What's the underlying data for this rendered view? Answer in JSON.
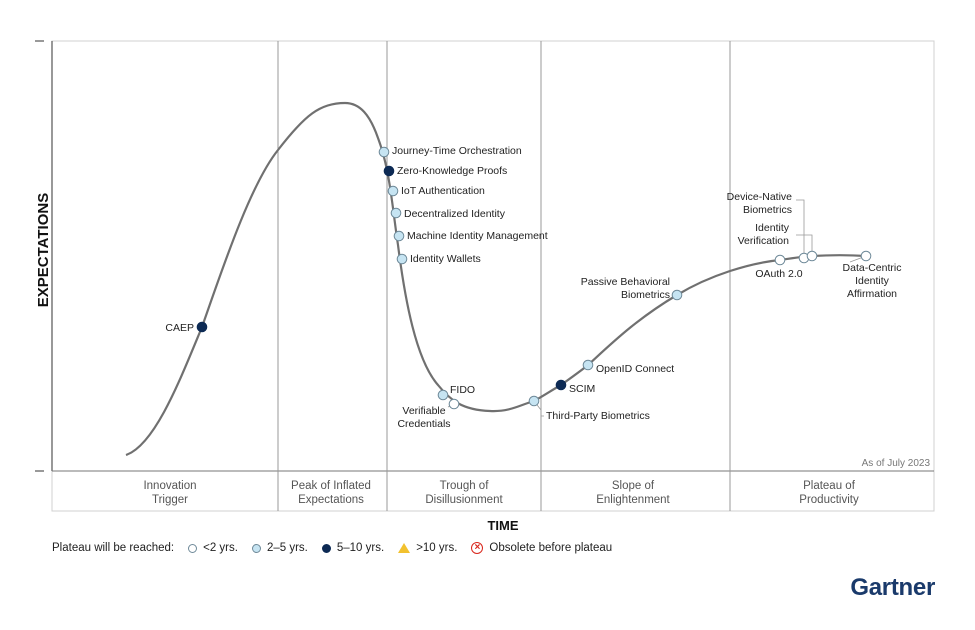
{
  "chart_data": {
    "type": "hype-cycle",
    "ylabel": "EXPECTATIONS",
    "xlabel": "TIME",
    "as_of": "As of July 2023",
    "phases": [
      {
        "label": [
          "Innovation",
          "Trigger"
        ]
      },
      {
        "label": [
          "Peak of Inflated",
          "Expectations"
        ]
      },
      {
        "label": [
          "Trough of",
          "Disillusionment"
        ]
      },
      {
        "label": [
          "Slope of",
          "Enlightenment"
        ]
      },
      {
        "label": [
          "Plateau of",
          "Productivity"
        ]
      }
    ],
    "legend": {
      "title": "Plateau will be reached:",
      "items": [
        {
          "key": "lt2",
          "label": "<2 yrs.",
          "color": "#ffffff"
        },
        {
          "key": "2to5",
          "label": "2–5 yrs.",
          "color": "#c6e4f2"
        },
        {
          "key": "5to10",
          "label": "5–10 yrs.",
          "color": "#0d2a54"
        },
        {
          "key": "gt10",
          "label": ">10 yrs.",
          "color": "#f2c12e"
        },
        {
          "key": "obsolete",
          "label": "Obsolete before plateau",
          "color": "#d9261c"
        }
      ]
    },
    "technologies": [
      {
        "name": [
          "CAEP"
        ],
        "plateau": "5to10"
      },
      {
        "name": [
          "Journey-Time Orchestration"
        ],
        "plateau": "2to5"
      },
      {
        "name": [
          "Zero-Knowledge Proofs"
        ],
        "plateau": "5to10"
      },
      {
        "name": [
          "IoT Authentication"
        ],
        "plateau": "2to5"
      },
      {
        "name": [
          "Decentralized Identity"
        ],
        "plateau": "2to5"
      },
      {
        "name": [
          "Machine Identity Management"
        ],
        "plateau": "2to5"
      },
      {
        "name": [
          "Identity Wallets"
        ],
        "plateau": "2to5"
      },
      {
        "name": [
          "FIDO"
        ],
        "plateau": "2to5"
      },
      {
        "name": [
          "Verifiable",
          "Credentials"
        ],
        "plateau": "lt2"
      },
      {
        "name": [
          "Third-Party Biometrics"
        ],
        "plateau": "2to5"
      },
      {
        "name": [
          "SCIM"
        ],
        "plateau": "5to10"
      },
      {
        "name": [
          "OpenID Connect"
        ],
        "plateau": "2to5"
      },
      {
        "name": [
          "Passive Behavioral",
          "Biometrics"
        ],
        "plateau": "2to5"
      },
      {
        "name": [
          "OAuth 2.0"
        ],
        "plateau": "lt2"
      },
      {
        "name": [
          "Device-Native",
          "Biometrics"
        ],
        "plateau": "lt2"
      },
      {
        "name": [
          "Identity",
          "Verification"
        ],
        "plateau": "lt2"
      },
      {
        "name": [
          "Data-Centric",
          "Identity",
          "Affirmation"
        ],
        "plateau": "lt2"
      }
    ]
  },
  "brand": "Gartner"
}
